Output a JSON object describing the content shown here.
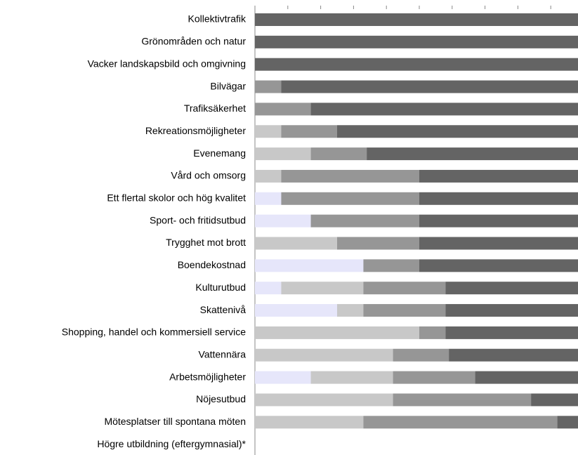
{
  "chart_data": {
    "type": "stacked_bar_horizontal",
    "categories": [
      "Kollektivtrafik",
      "Grönområden och natur",
      "Vacker landskapsbild och omgivning",
      "Bilvägar",
      "Trafiksäkerhet",
      "Rekreationsmöjligheter",
      "Evenemang",
      "Vård och omsorg",
      "Ett flertal skolor och hög kvalitet",
      "Sport- och fritidsutbud",
      "Trygghet mot brott",
      "Boendekostnad",
      "Kulturutbud",
      "Skattenivå",
      "Shopping, handel och kommersiell service",
      "Vattennära",
      "Arbetsmöjligheter",
      "Nöjesutbud",
      "Mötesplatser till spontana möten",
      "Högre utbildning (eftergymnasial)*"
    ],
    "series": [
      {
        "color": "#e6e6fa",
        "values": [
          0,
          0,
          0,
          0,
          0,
          0,
          0,
          0,
          8,
          17,
          0,
          33,
          8,
          25,
          0,
          0,
          17,
          0,
          0,
          null
        ]
      },
      {
        "color": "#c8c8c8",
        "values": [
          0,
          0,
          0,
          0,
          0,
          8,
          17,
          8,
          0,
          0,
          25,
          0,
          25,
          8,
          50,
          42,
          25,
          42,
          33,
          null
        ]
      },
      {
        "color": "#969696",
        "values": [
          0,
          0,
          0,
          8,
          17,
          17,
          17,
          42,
          42,
          33,
          25,
          17,
          25,
          25,
          8,
          17,
          25,
          42,
          59,
          null
        ]
      },
      {
        "color": "#646464",
        "values": [
          100,
          100,
          100,
          92,
          83,
          75,
          66,
          50,
          50,
          50,
          50,
          50,
          42,
          42,
          42,
          41,
          33,
          16,
          8,
          null
        ]
      }
    ],
    "xlim": [
      0,
      100
    ],
    "xticks": [
      0,
      10,
      20,
      30,
      40,
      50,
      60,
      70,
      80,
      90,
      100
    ]
  }
}
